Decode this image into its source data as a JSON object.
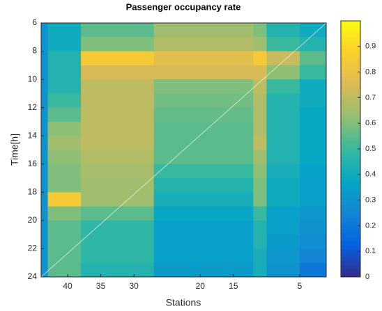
{
  "chart_data": {
    "type": "heatmap",
    "title": "Passenger occupancy rate",
    "xlabel": "Stations",
    "ylabel": "Time[h]",
    "x_edges": [
      44,
      43,
      38,
      27,
      12,
      10,
      5,
      1
    ],
    "y_edges": [
      6,
      7,
      8,
      9,
      10,
      11,
      12,
      13,
      14,
      15,
      16,
      17,
      18,
      19,
      20,
      21,
      22,
      23,
      24
    ],
    "xlim": [
      44,
      1
    ],
    "xticks": [
      40,
      35,
      30,
      20,
      15,
      5
    ],
    "ylim": [
      6,
      24
    ],
    "yticks": [
      6,
      8,
      10,
      12,
      14,
      16,
      18,
      20,
      22,
      24
    ],
    "colormap": "parula",
    "clim": [
      0,
      1
    ],
    "cticks": [
      0,
      0.1,
      0.2,
      0.3,
      0.4,
      0.5,
      0.6,
      0.7,
      0.8,
      0.9
    ],
    "z": [
      [
        0.3,
        0.4,
        0.55,
        0.65,
        0.6,
        0.45,
        0.4
      ],
      [
        0.3,
        0.4,
        0.6,
        0.68,
        0.65,
        0.5,
        0.45
      ],
      [
        0.3,
        0.45,
        0.85,
        0.78,
        0.85,
        0.72,
        0.55
      ],
      [
        0.3,
        0.45,
        0.75,
        0.75,
        0.75,
        0.62,
        0.5
      ],
      [
        0.3,
        0.45,
        0.7,
        0.6,
        0.7,
        0.5,
        0.4
      ],
      [
        0.3,
        0.5,
        0.7,
        0.58,
        0.68,
        0.45,
        0.4
      ],
      [
        0.3,
        0.55,
        0.7,
        0.56,
        0.68,
        0.45,
        0.38
      ],
      [
        0.3,
        0.62,
        0.7,
        0.55,
        0.68,
        0.45,
        0.38
      ],
      [
        0.3,
        0.65,
        0.7,
        0.55,
        0.7,
        0.45,
        0.38
      ],
      [
        0.3,
        0.62,
        0.68,
        0.55,
        0.65,
        0.45,
        0.38
      ],
      [
        0.3,
        0.6,
        0.66,
        0.5,
        0.62,
        0.42,
        0.36
      ],
      [
        0.3,
        0.6,
        0.65,
        0.45,
        0.6,
        0.4,
        0.35
      ],
      [
        0.3,
        0.85,
        0.65,
        0.42,
        0.6,
        0.4,
        0.35
      ],
      [
        0.3,
        0.6,
        0.55,
        0.38,
        0.5,
        0.35,
        0.32
      ],
      [
        0.3,
        0.55,
        0.48,
        0.35,
        0.45,
        0.35,
        0.3
      ],
      [
        0.3,
        0.55,
        0.48,
        0.35,
        0.45,
        0.33,
        0.28
      ],
      [
        0.3,
        0.55,
        0.48,
        0.35,
        0.42,
        0.32,
        0.25
      ],
      [
        0.3,
        0.55,
        0.45,
        0.33,
        0.42,
        0.3,
        0.2
      ]
    ]
  }
}
